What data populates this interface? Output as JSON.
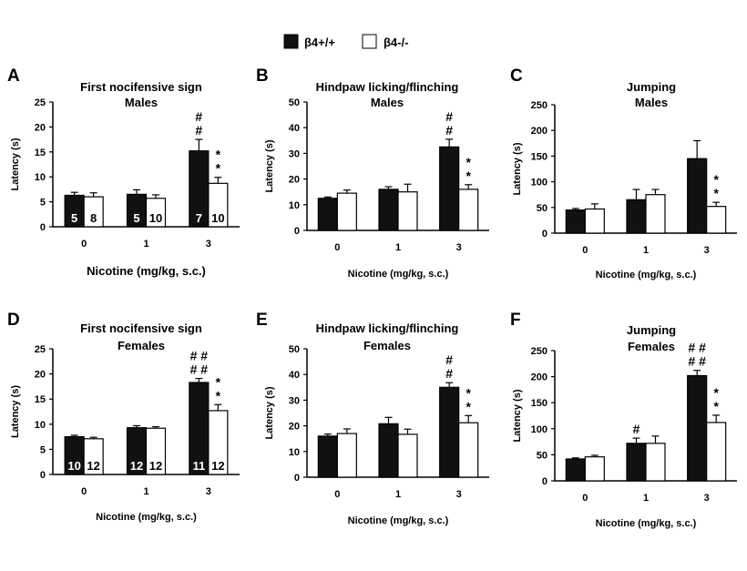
{
  "legend": {
    "wt_label": "β4+/+",
    "ko_label": "β4-/-",
    "wt_color": "#111111",
    "ko_color": "#ffffff"
  },
  "chart_data": [
    {
      "panel": "A",
      "type": "bar",
      "title": [
        "First nocifensive sign",
        "Males"
      ],
      "ylabel": "Latency (s)",
      "xlabel": "Nicotine (mg/kg, s.c.)",
      "categories": [
        "0",
        "1",
        "3"
      ],
      "ylim": [
        0,
        25
      ],
      "yticks": [
        0,
        5,
        10,
        15,
        20,
        25
      ],
      "series": [
        {
          "name": "β4+/+",
          "values": [
            6.3,
            6.5,
            15.2
          ],
          "errors": [
            0.6,
            0.9,
            2.3
          ],
          "n": [
            "5",
            "5",
            "7"
          ],
          "marks": [
            "",
            "",
            "#|#"
          ]
        },
        {
          "name": "β4-/-",
          "values": [
            6.0,
            5.7,
            8.7
          ],
          "errors": [
            0.8,
            0.7,
            1.2
          ],
          "n": [
            "8",
            "10",
            "10"
          ],
          "marks": [
            "",
            "",
            "*|*"
          ]
        }
      ]
    },
    {
      "panel": "B",
      "type": "bar",
      "title": [
        "Hindpaw licking/flinching",
        "Males"
      ],
      "ylabel": "Latency (s)",
      "xlabel": "Nicotine (mg/kg, s.c.)",
      "categories": [
        "0",
        "1",
        "3"
      ],
      "ylim": [
        0,
        50
      ],
      "yticks": [
        0,
        10,
        20,
        30,
        40,
        50
      ],
      "series": [
        {
          "name": "β4+/+",
          "values": [
            12.5,
            16.0,
            32.5
          ],
          "errors": [
            0.5,
            1.0,
            3.0
          ],
          "n": [],
          "marks": [
            "",
            "",
            "#|#"
          ]
        },
        {
          "name": "β4-/-",
          "values": [
            14.5,
            15.0,
            16.0
          ],
          "errors": [
            1.2,
            3.0,
            1.8
          ],
          "n": [],
          "marks": [
            "",
            "",
            "*|*"
          ]
        }
      ]
    },
    {
      "panel": "C",
      "type": "bar",
      "title": [
        "Jumping",
        "Males"
      ],
      "ylabel": "Latency (s)",
      "xlabel": "Nicotine (mg/kg, s.c.)",
      "categories": [
        "0",
        "1",
        "3"
      ],
      "ylim": [
        0,
        250
      ],
      "yticks": [
        0,
        50,
        100,
        150,
        200,
        250
      ],
      "series": [
        {
          "name": "β4+/+",
          "values": [
            45,
            65,
            145
          ],
          "errors": [
            3,
            20,
            35
          ],
          "n": [],
          "marks": [
            "",
            "",
            ""
          ]
        },
        {
          "name": "β4-/-",
          "values": [
            47,
            75,
            52
          ],
          "errors": [
            10,
            10,
            8
          ],
          "n": [],
          "marks": [
            "",
            "",
            "*|*"
          ]
        }
      ]
    },
    {
      "panel": "D",
      "type": "bar",
      "title": [
        "First nocifensive sign",
        "Females"
      ],
      "ylabel": "Latency (s)",
      "xlabel": "Nicotine (mg/kg, s.c.)",
      "categories": [
        "0",
        "1",
        "3"
      ],
      "ylim": [
        0,
        25
      ],
      "yticks": [
        0,
        5,
        10,
        15,
        20,
        25
      ],
      "series": [
        {
          "name": "β4+/+",
          "values": [
            7.5,
            9.3,
            18.3
          ],
          "errors": [
            0.3,
            0.4,
            0.8
          ],
          "n": [
            "10",
            "12",
            "11"
          ],
          "marks": [
            "",
            "",
            "# #|# #"
          ]
        },
        {
          "name": "β4-/-",
          "values": [
            7.1,
            9.2,
            12.7
          ],
          "errors": [
            0.3,
            0.3,
            1.2
          ],
          "n": [
            "12",
            "12",
            "12"
          ],
          "marks": [
            "",
            "",
            "*|*"
          ]
        }
      ]
    },
    {
      "panel": "E",
      "type": "bar",
      "title": [
        "Hindpaw licking/flinching",
        "Females"
      ],
      "ylabel": "Latency (s)",
      "xlabel": "Nicotine (mg/kg, s.c.)",
      "categories": [
        "0",
        "1",
        "3"
      ],
      "ylim": [
        0,
        50
      ],
      "yticks": [
        0,
        10,
        20,
        30,
        40,
        50
      ],
      "series": [
        {
          "name": "β4+/+",
          "values": [
            16.0,
            20.8,
            35.0
          ],
          "errors": [
            0.8,
            2.5,
            1.8
          ],
          "n": [],
          "marks": [
            "",
            "",
            "#|#"
          ]
        },
        {
          "name": "β4-/-",
          "values": [
            17.0,
            16.7,
            21.2
          ],
          "errors": [
            1.8,
            2.0,
            2.8
          ],
          "n": [],
          "marks": [
            "",
            "",
            "*|*"
          ]
        }
      ]
    },
    {
      "panel": "F",
      "type": "bar",
      "title": [
        "Jumping",
        "Females"
      ],
      "ylabel": "Latency (s)",
      "xlabel": "Nicotine (mg/kg, s.c.)",
      "categories": [
        "0",
        "1",
        "3"
      ],
      "ylim": [
        0,
        250
      ],
      "yticks": [
        0,
        50,
        100,
        150,
        200,
        250
      ],
      "series": [
        {
          "name": "β4+/+",
          "values": [
            42,
            72,
            202
          ],
          "errors": [
            2,
            10,
            10
          ],
          "n": [],
          "marks": [
            "",
            "#",
            "# #|# #"
          ]
        },
        {
          "name": "β4-/-",
          "values": [
            46,
            72,
            112
          ],
          "errors": [
            3,
            14,
            14
          ],
          "n": [],
          "marks": [
            "",
            "",
            "*|*"
          ]
        }
      ]
    }
  ]
}
